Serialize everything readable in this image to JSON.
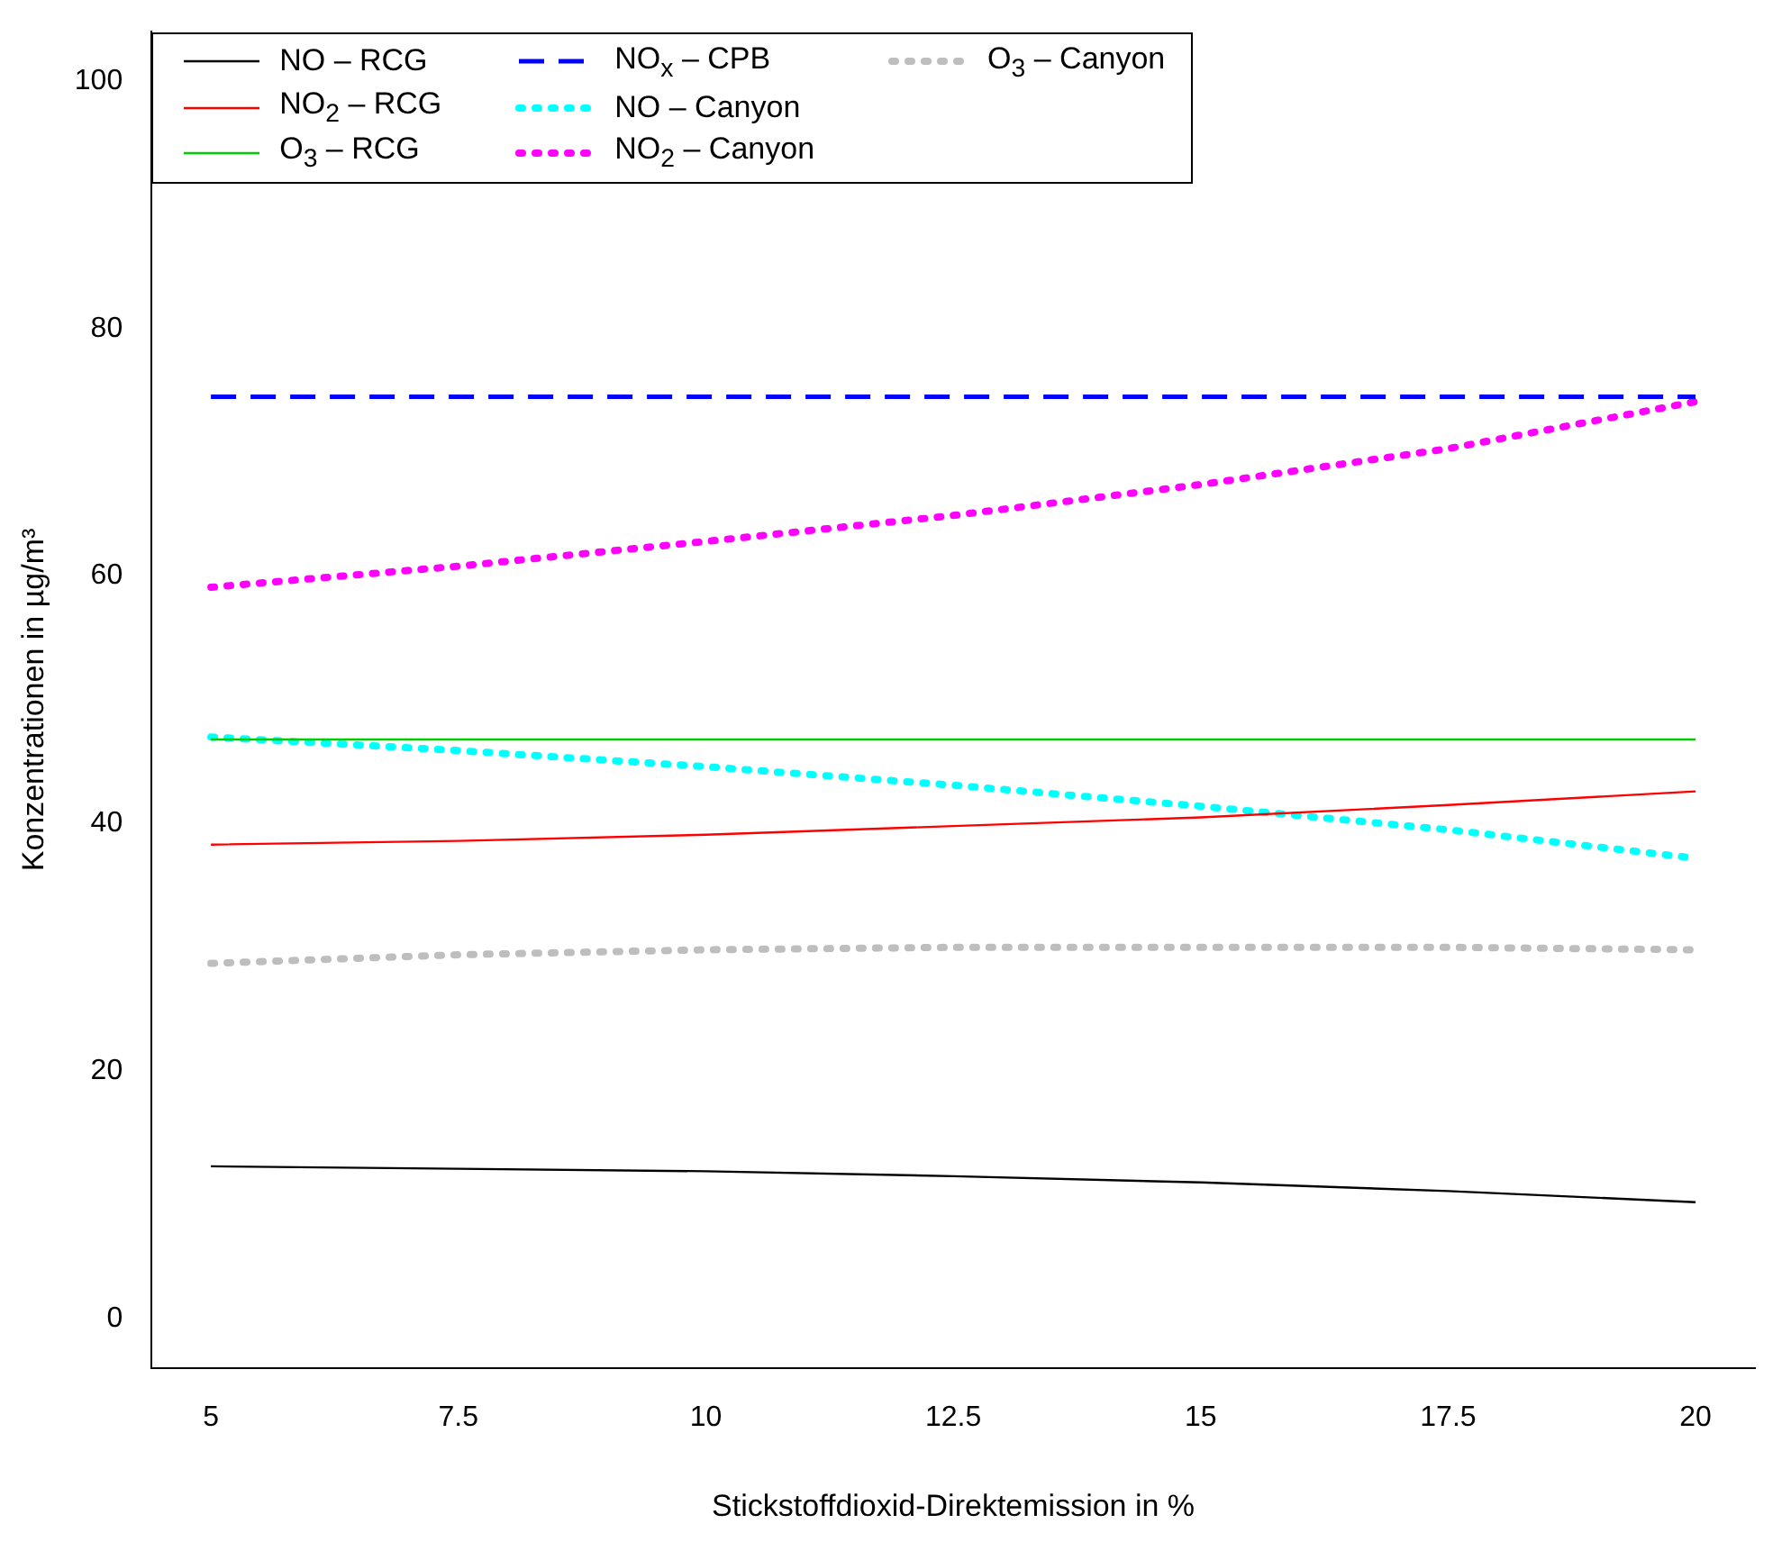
{
  "chart_data": {
    "type": "line",
    "xlabel": "Stickstoffdioxid-Direktemission in %",
    "ylabel": "Konzentrationen in µg/m³",
    "x": [
      5,
      7.5,
      10,
      12.5,
      15,
      17.5,
      20
    ],
    "xlim": [
      4.4,
      20.6
    ],
    "xticks": [
      5,
      7.5,
      10,
      12.5,
      15,
      17.5,
      20
    ],
    "ylim": [
      -4,
      104
    ],
    "yticks": [
      0,
      20,
      40,
      60,
      80,
      100
    ],
    "grid": false,
    "legend": "top left",
    "marker": "none",
    "series": [
      {
        "name": "NO – RCG",
        "color": "#000000",
        "line_style": "solid",
        "values": [
          12.3,
          12.1,
          11.9,
          11.5,
          11.0,
          10.3,
          9.4
        ]
      },
      {
        "name": "NO$_{2}$ – RCG",
        "color": "#ff0000",
        "line_style": "solid",
        "values": [
          38.3,
          38.6,
          39.1,
          39.8,
          40.5,
          41.5,
          42.6
        ]
      },
      {
        "name": "O$_{3}$ – RCG",
        "color": "#00cd00",
        "line_style": "solid",
        "values": [
          46.8,
          46.8,
          46.8,
          46.8,
          46.8,
          46.8,
          46.8
        ]
      },
      {
        "name": "NO$_{x}$ – CPB",
        "color": "#0000ff",
        "line_style": "dashed",
        "values": [
          74.5,
          74.5,
          74.5,
          74.5,
          74.5,
          74.5,
          74.5
        ]
      },
      {
        "name": "NO – Canyon",
        "color": "#00ffff",
        "line_style": "dotted",
        "values": [
          47.0,
          45.9,
          44.6,
          43.1,
          41.4,
          39.5,
          37.2
        ]
      },
      {
        "name": "NO$_{2}$ – Canyon",
        "color": "#ff00ff",
        "line_style": "dotted",
        "values": [
          59.1,
          60.8,
          62.8,
          64.9,
          67.4,
          70.3,
          74.1
        ]
      },
      {
        "name": "O$_{3}$ – Canyon",
        "color": "#bebebe",
        "line_style": "dotted",
        "values": [
          28.7,
          29.4,
          29.8,
          30.0,
          30.0,
          30.0,
          29.8
        ]
      }
    ]
  }
}
